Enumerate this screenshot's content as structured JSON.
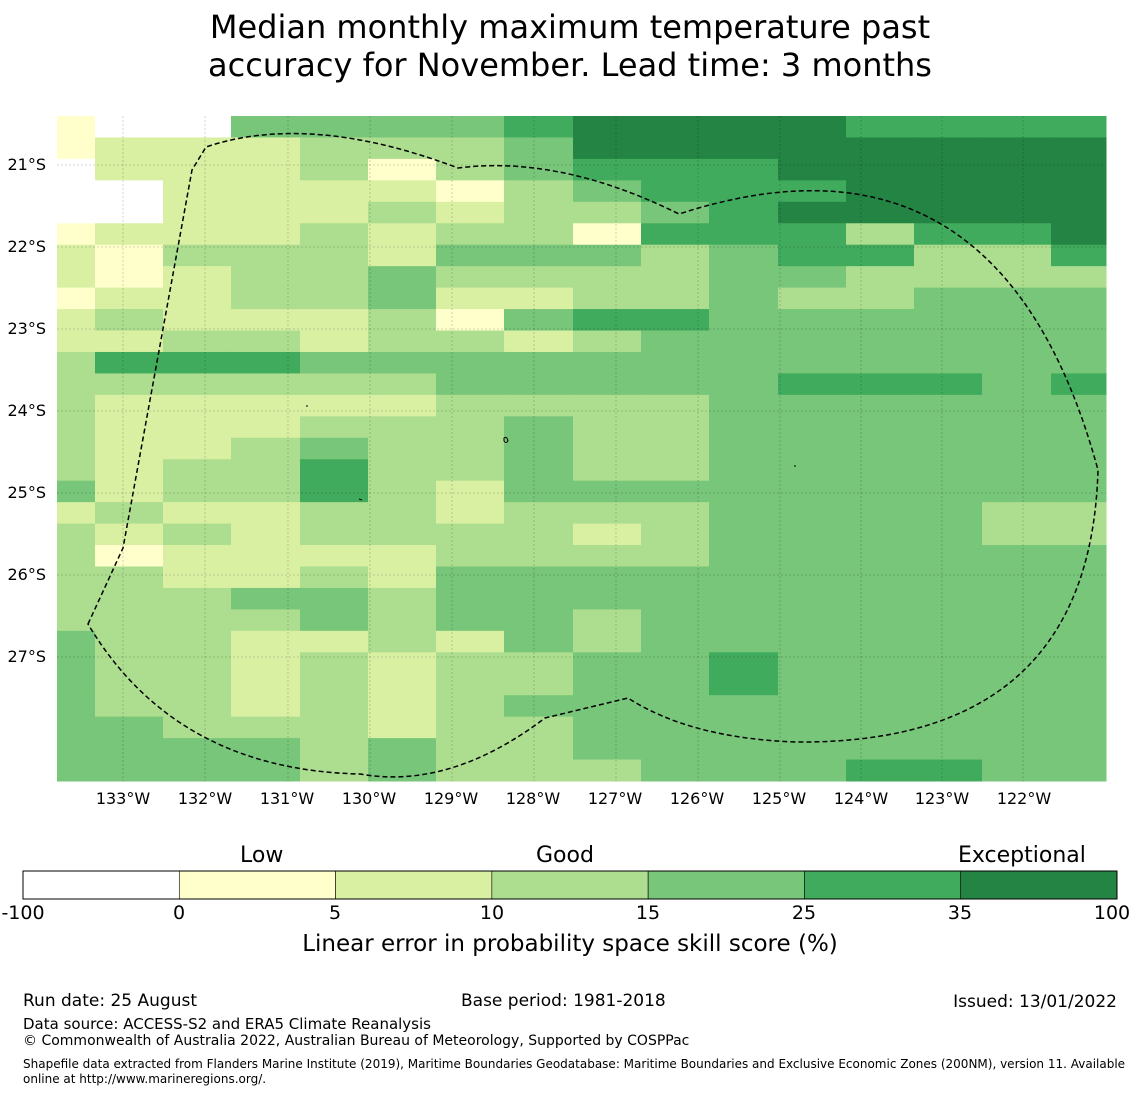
{
  "title": {
    "line1": "Median monthly maximum temperature past",
    "line2": "accuracy for November. Lead time: 3 months"
  },
  "map": {
    "lat_labels": [
      "21°S",
      "22°S",
      "23°S",
      "24°S",
      "25°S",
      "26°S",
      "27°S"
    ],
    "lon_labels": [
      "133°W",
      "132°W",
      "131°W",
      "130°W",
      "129°W",
      "128°W",
      "127°W",
      "126°W",
      "125°W",
      "124°W",
      "123°W",
      "122°W"
    ],
    "rows": [
      "1004444566665555",
      "1222333466666666",
      "0222313455566666",
      "0022221345556666",
      "0022232334566666",
      "1222323315553556",
      "2133324443455335",
      "2123343333443333",
      "1223342233433444",
      "2322231455444444",
      "2233233234444444",
      "3555444444444444",
      "3333334444455545",
      "3222223333444444",
      "3222333433444444",
      "3223433433444444",
      "3233533433444444",
      "4233532444444444",
      "2322332333444433",
      "3232333323444433",
      "3122223333444444",
      "3322324444444444",
      "3334434444444444",
      "3333434434444444",
      "4332232434444444",
      "4332323344544444",
      "4332323344544444",
      "4332323444444444",
      "4433323344444444",
      "4444343344444444",
      "4444343334445544"
    ],
    "level_colors": [
      "#ffffff",
      "#ffffcc",
      "#d9f0a3",
      "#addd8e",
      "#78c679",
      "#41ab5d",
      "#238443"
    ]
  },
  "colorbar": {
    "categories": [
      "Low",
      "Good",
      "Exceptional"
    ],
    "ticks": [
      "-100",
      "0",
      "5",
      "10",
      "15",
      "25",
      "35",
      "100"
    ],
    "colors": [
      "#ffffff",
      "#ffffcc",
      "#d9f0a3",
      "#addd8e",
      "#78c679",
      "#41ab5d",
      "#238443"
    ],
    "label": "Linear error in probability space skill score (%)"
  },
  "footer": {
    "run_date": "Run date: 25 August",
    "base_period": "Base period: 1981-2018",
    "issued": "Issued: 13/01/2022",
    "data_source": "Data source: ACCESS-S2 and ERA5 Climate Reanalysis",
    "copyright": "© Commonwealth of Australia 2022, Australian Bureau of Meteorology, Supported by COSPPac",
    "shapefile": "Shapefile data extracted from Flanders Marine Institute (2019), Maritime Boundaries Geodatabase: Maritime Boundaries and Exclusive Economic Zones (200NM), version 11. Available online at http://www.marineregions.org/."
  }
}
